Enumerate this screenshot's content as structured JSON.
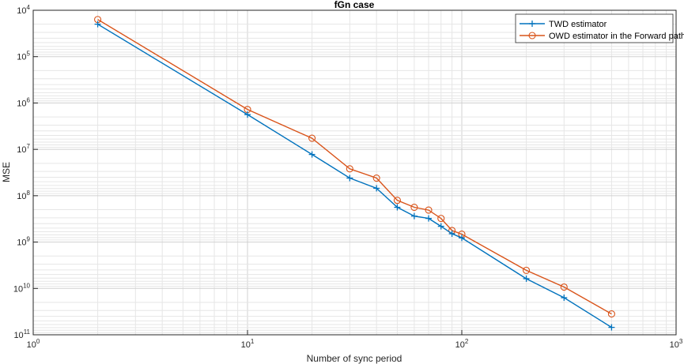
{
  "chart_data": {
    "type": "line",
    "title": "fGn case",
    "xlabel": "Number of sync period",
    "ylabel": "MSE",
    "xscale": "log",
    "yscale": "log",
    "xlim": [
      1,
      1000
    ],
    "ylim_exponent": [
      4,
      11
    ],
    "x_ticks": [
      {
        "base": "10",
        "exp": "0"
      },
      {
        "base": "10",
        "exp": "1"
      },
      {
        "base": "10",
        "exp": "2"
      },
      {
        "base": "10",
        "exp": "3"
      }
    ],
    "y_ticks": [
      {
        "base": "10",
        "exp": "4"
      },
      {
        "base": "10",
        "exp": "5"
      },
      {
        "base": "10",
        "exp": "6"
      },
      {
        "base": "10",
        "exp": "7"
      },
      {
        "base": "10",
        "exp": "8"
      },
      {
        "base": "10",
        "exp": "9"
      },
      {
        "base": "10",
        "exp": "10"
      },
      {
        "base": "10",
        "exp": "11"
      }
    ],
    "grid": true,
    "legend_position": "top-right",
    "x": [
      2,
      10,
      20,
      30,
      40,
      50,
      60,
      70,
      80,
      90,
      100,
      200,
      300,
      500
    ],
    "series": [
      {
        "name": "TWD estimator",
        "color": "#0072BD",
        "marker": "plus",
        "y_exponent": [
          4.3,
          6.25,
          7.11,
          7.62,
          7.84,
          8.25,
          8.44,
          8.49,
          8.66,
          8.82,
          8.91,
          9.79,
          10.2,
          10.84
        ]
      },
      {
        "name": "OWD estimator in the Forward path",
        "color": "#D95319",
        "marker": "circle",
        "y_exponent": [
          4.2,
          6.14,
          6.76,
          7.42,
          7.62,
          8.1,
          8.25,
          8.31,
          8.49,
          8.75,
          8.83,
          9.61,
          9.97,
          10.55
        ]
      }
    ]
  }
}
